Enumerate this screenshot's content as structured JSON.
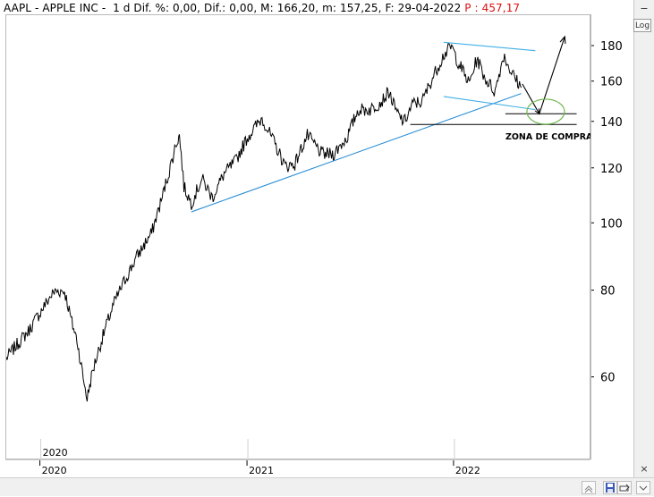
{
  "header": {
    "ticker": "AAPL",
    "name": "APPLE INC",
    "period": "1 d",
    "dif_pct_label": "Dif. %:",
    "dif_pct": "0,00",
    "dif_label": "Dif.:",
    "dif": "0,00",
    "max_label": "M:",
    "max": "166,20",
    "min_label": "m:",
    "min": "157,25",
    "date_label": "F:",
    "date": "29-04-2022",
    "p_label": "P :",
    "p": "457,17"
  },
  "toolbar": {
    "log_label": "Log",
    "close_symbol": "×",
    "minimize_symbol": "−"
  },
  "annotation": {
    "zone_text": "ZONA DE COMPRA"
  },
  "colors": {
    "price": "#000000",
    "trendline": "#2b8fd6",
    "channel": "#3fb0e6",
    "circle": "#6db84a",
    "header_red": "#e01010"
  },
  "chart_data": {
    "type": "line",
    "title": "AAPL - APPLE INC",
    "xlabel": "",
    "ylabel": "",
    "y_scale": "log",
    "ylim": [
      47,
      195
    ],
    "xlim": [
      "2019-11-01",
      "2022-08-31"
    ],
    "y_ticks": [
      60,
      80,
      100,
      120,
      140,
      160,
      180
    ],
    "x_ticks": [
      "2020",
      "2021",
      "2022"
    ],
    "inner_year_label": "2020",
    "grid": false,
    "series": [
      {
        "name": "",
        "x": [
          "2019-11-01",
          "2019-11-20",
          "2019-12-10",
          "2020-01-02",
          "2020-01-20",
          "2020-01-28",
          "2020-02-12",
          "2020-02-25",
          "2020-03-05",
          "2020-03-16",
          "2020-03-23",
          "2020-04-01",
          "2020-04-20",
          "2020-05-10",
          "2020-06-01",
          "2020-06-20",
          "2020-07-15",
          "2020-08-01",
          "2020-08-15",
          "2020-08-28",
          "2020-09-02",
          "2020-09-10",
          "2020-09-23",
          "2020-10-12",
          "2020-10-30",
          "2020-11-20",
          "2020-12-10",
          "2020-12-31",
          "2021-01-26",
          "2021-02-10",
          "2021-03-08",
          "2021-03-25",
          "2021-04-16",
          "2021-05-12",
          "2021-06-01",
          "2021-06-25",
          "2021-07-15",
          "2021-08-05",
          "2021-08-25",
          "2021-09-07",
          "2021-09-20",
          "2021-10-04",
          "2021-10-20",
          "2021-11-05",
          "2021-11-20",
          "2021-12-13",
          "2021-12-27",
          "2022-01-06",
          "2022-01-27",
          "2022-02-10",
          "2022-02-24",
          "2022-03-14",
          "2022-03-29",
          "2022-04-12",
          "2022-04-29"
        ],
        "values": [
          64,
          67,
          70,
          75,
          79,
          80,
          80,
          72,
          68,
          60,
          56,
          61,
          69,
          77,
          84,
          90,
          97,
          108,
          119,
          131,
          134,
          113,
          107,
          116,
          109,
          118,
          123,
          133,
          142,
          134,
          121,
          122,
          134,
          126,
          126,
          133,
          146,
          146,
          150,
          155,
          145,
          140,
          149,
          150,
          160,
          175,
          180,
          172,
          159,
          173,
          162,
          155,
          175,
          165,
          157
        ]
      }
    ],
    "annotations": [
      {
        "type": "trendline",
        "from": [
          "2020-09-23",
          104.0
        ],
        "to": [
          "2022-04-29",
          154.0
        ]
      },
      {
        "type": "channel_top",
        "from": [
          "2021-12-13",
          182.5
        ],
        "to": [
          "2022-05-24",
          177.5
        ]
      },
      {
        "type": "channel_bottom",
        "from": [
          "2021-12-13",
          152.5
        ],
        "to": [
          "2022-05-24",
          146.0
        ]
      },
      {
        "type": "hline",
        "from": "2021-10-15",
        "to": "2022-08-05",
        "y": 139.0
      },
      {
        "type": "hline",
        "from": "2022-04-01",
        "to": "2022-08-05",
        "y": 144.0
      },
      {
        "type": "projection",
        "points": [
          [
            "2022-05-01",
            159.0
          ],
          [
            "2022-05-31",
            144.0
          ],
          [
            "2022-07-15",
            186.0
          ]
        ]
      },
      {
        "type": "buy_zone",
        "center": [
          "2022-06-05",
          145.0
        ],
        "label": "ZONA DE COMPRA"
      }
    ]
  }
}
